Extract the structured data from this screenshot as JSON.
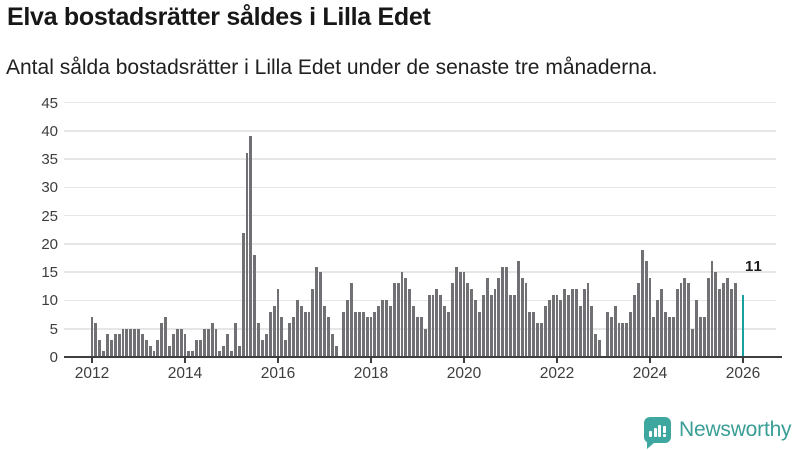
{
  "title": "Elva bostadsrätter såldes i Lilla Edet",
  "subtitle": "Antal sålda bostadsrätter i Lilla Edet under de senaste tre månaderna.",
  "annotation": {
    "label": "11"
  },
  "branding": {
    "name": "Newsworthy",
    "icon": "bar-chart-bubble-icon"
  },
  "colors": {
    "bar": "#707075",
    "highlight": "#189f9f",
    "axis": "#3e3e3e",
    "grid": "#e6e6e6",
    "logo_teal": "#3ea79f"
  },
  "chart_data": {
    "type": "bar",
    "title": "Elva bostadsrätter såldes i Lilla Edet",
    "subtitle": "Antal sålda bostadsrätter i Lilla Edet under de senaste tre månaderna.",
    "frequency": "monthly",
    "start": "2012-01",
    "end": "2026-01",
    "ylim": [
      0,
      45
    ],
    "y_ticks": [
      0,
      5,
      10,
      15,
      20,
      25,
      30,
      35,
      40,
      45
    ],
    "x_tick_years": [
      2012,
      2014,
      2016,
      2018,
      2020,
      2022,
      2024,
      2026
    ],
    "grid": true,
    "legend": "none",
    "highlight_last_value": 11,
    "values": [
      7,
      6,
      3,
      1,
      4,
      3,
      4,
      4,
      5,
      5,
      5,
      5,
      5,
      4,
      3,
      2,
      1,
      3,
      6,
      7,
      2,
      4,
      5,
      5,
      4,
      1,
      1,
      3,
      3,
      5,
      5,
      6,
      5,
      1,
      2,
      4,
      1,
      6,
      2,
      22,
      36,
      39,
      18,
      6,
      3,
      4,
      8,
      9,
      12,
      7,
      3,
      6,
      7,
      10,
      9,
      8,
      8,
      12,
      16,
      15,
      9,
      7,
      4,
      2,
      0,
      8,
      10,
      13,
      8,
      8,
      8,
      7,
      7,
      8,
      9,
      10,
      10,
      9,
      13,
      13,
      15,
      14,
      12,
      9,
      7,
      7,
      5,
      11,
      11,
      12,
      11,
      9,
      8,
      13,
      16,
      15,
      15,
      13,
      12,
      10,
      8,
      11,
      14,
      11,
      12,
      14,
      16,
      16,
      11,
      11,
      17,
      14,
      13,
      8,
      8,
      6,
      6,
      9,
      10,
      11,
      11,
      10,
      12,
      11,
      12,
      12,
      9,
      12,
      13,
      9,
      4,
      3,
      0,
      8,
      7,
      9,
      6,
      6,
      6,
      8,
      11,
      13,
      19,
      17,
      14,
      7,
      10,
      12,
      8,
      7,
      7,
      12,
      13,
      14,
      13,
      5,
      10,
      7,
      7,
      14,
      17,
      15,
      12,
      13,
      14,
      12,
      13,
      0,
      11
    ]
  }
}
